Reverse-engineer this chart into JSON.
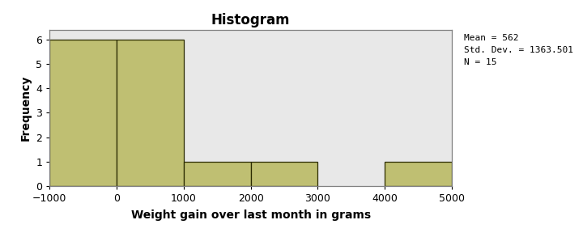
{
  "title": "Histogram",
  "xlabel": "Weight gain over last month in grams",
  "ylabel": "Frequency",
  "bar_edges": [
    -1000,
    0,
    1000,
    2000,
    3000,
    4000,
    5000
  ],
  "bar_heights": [
    6,
    6,
    1,
    1,
    0,
    1
  ],
  "bar_color": "#BFBF72",
  "bar_edge_color": "#2a2a00",
  "xlim": [
    -1000,
    5000
  ],
  "ylim": [
    0,
    6.4
  ],
  "xticks": [
    -1000,
    0,
    1000,
    2000,
    3000,
    4000,
    5000
  ],
  "yticks": [
    0,
    1,
    2,
    3,
    4,
    5,
    6
  ],
  "annotation_line1": "Mean = 562",
  "annotation_line2": "Std. Dev. = 1363.501",
  "annotation_line3": "N = 15",
  "bg_color": "#E8E8E8",
  "fig_bg_color": "#FFFFFF",
  "title_fontsize": 12,
  "label_fontsize": 10,
  "tick_fontsize": 9,
  "annotation_fontsize": 8,
  "spine_color": "#808080"
}
